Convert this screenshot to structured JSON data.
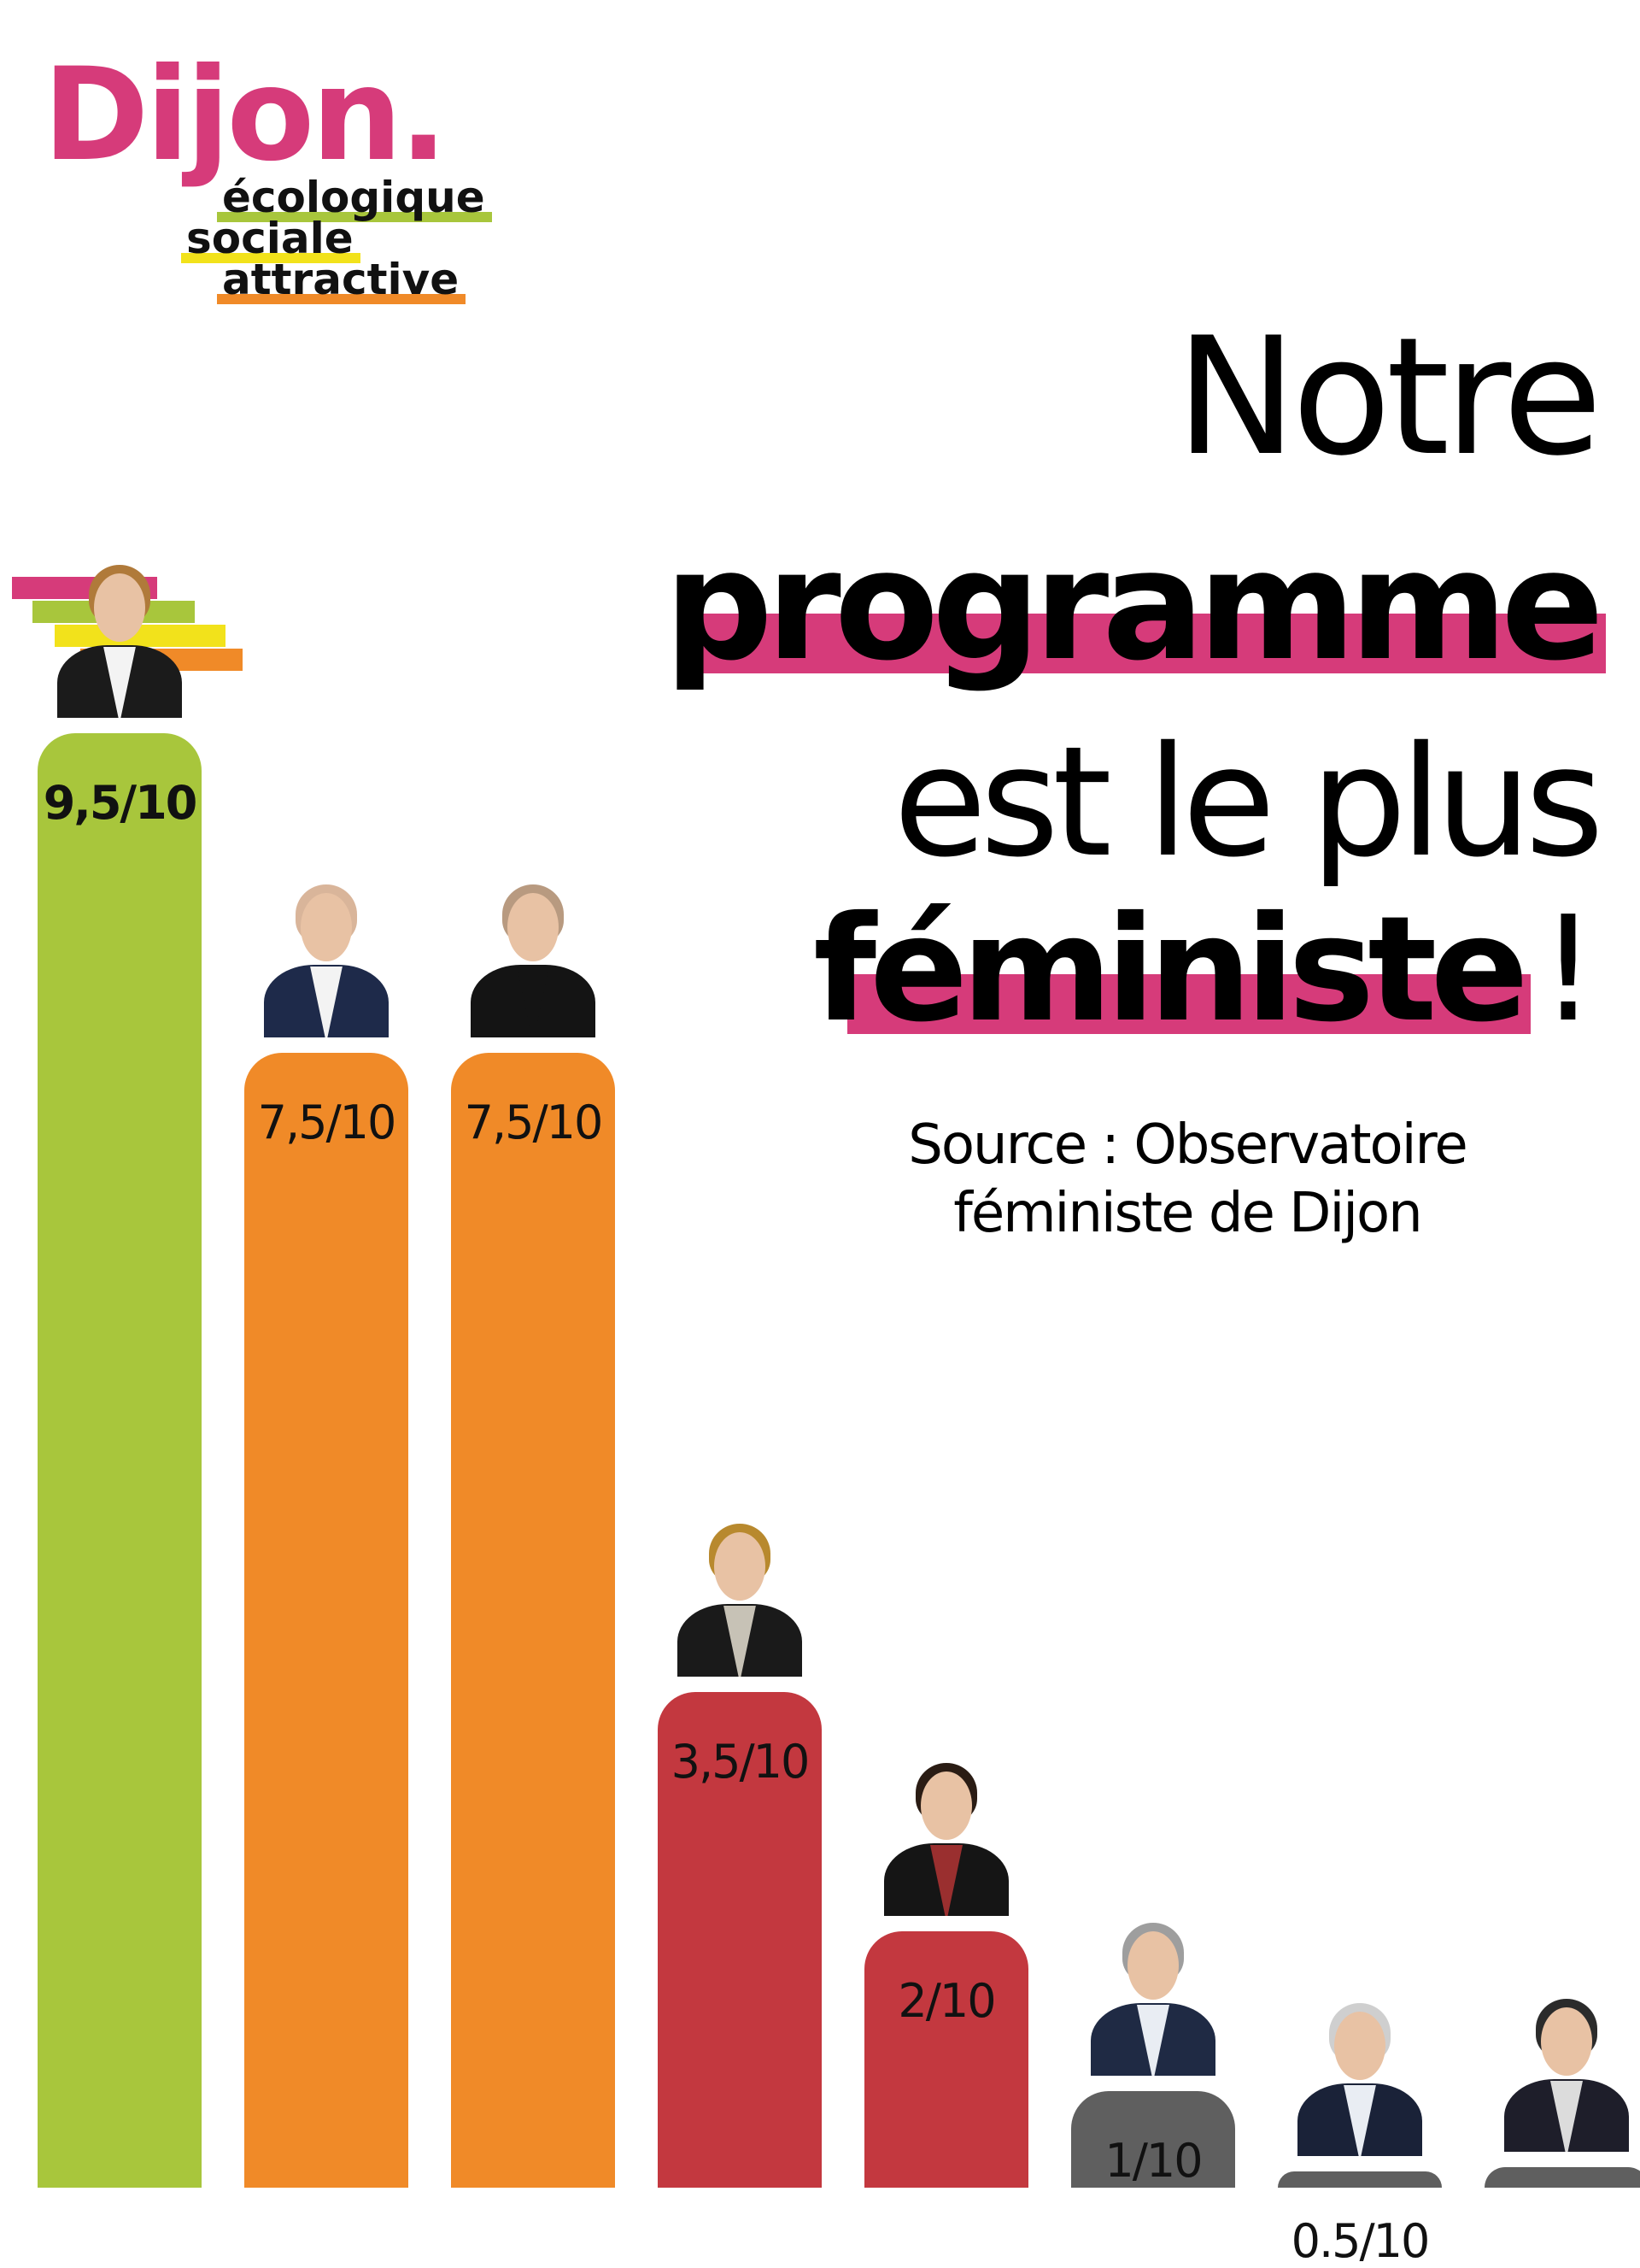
{
  "logo": {
    "city": "Dijon.",
    "words": [
      "écologique",
      "sociale",
      "attractive"
    ],
    "colors": {
      "city": "#d63b7a",
      "ecologique": "#a8c63c",
      "sociale": "#f2e21b",
      "attractive": "#f08a28"
    }
  },
  "headline": {
    "line1": "Notre",
    "line2": "programme",
    "line3": "est le plus",
    "line4": "féministe",
    "excl": "!",
    "highlight_color": "#d63b7a"
  },
  "source": {
    "line1": "Source : Observatoire",
    "line2": "féministe de Dijon"
  },
  "chart_data": {
    "type": "bar",
    "title": "Notre programme est le plus féministe !",
    "ylim": [
      0,
      10
    ],
    "values": [
      9.5,
      7.5,
      7.5,
      3.5,
      2,
      1,
      0.5,
      0
    ],
    "labels": [
      "9,5/10",
      "7,5/10",
      "7,5/10",
      "3,5/10",
      "2/10",
      "1/10",
      "0.5/10",
      ""
    ],
    "colors": [
      "#a8c63c",
      "#f08a28",
      "#f08a28",
      "#c3383f",
      "#c3383f",
      "#5f5f5f",
      "#5f5f5f",
      "#5f5f5f"
    ]
  }
}
